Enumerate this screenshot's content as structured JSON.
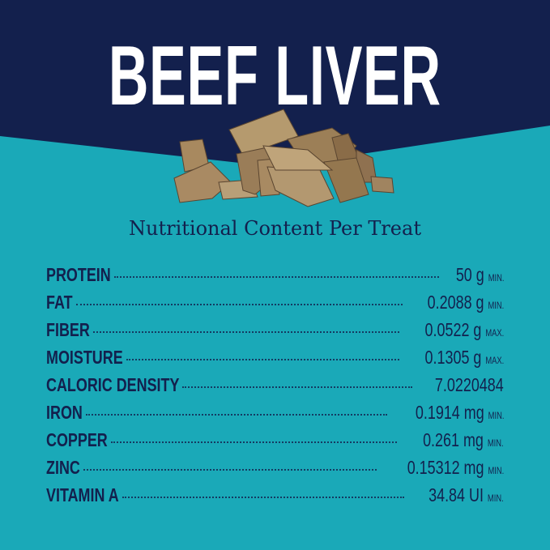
{
  "title": "BEEF LIVER",
  "subtitle": "Nutritional Content Per Treat",
  "colors": {
    "navy": "#13204d",
    "teal": "#1aa9b8",
    "title": "#ffffff"
  },
  "image": "freeze-dried-beef-liver-chunks",
  "nutrients": [
    {
      "label": "PROTEIN",
      "value": "50 g",
      "qualifier": "MIN."
    },
    {
      "label": "FAT",
      "value": "0.2088 g",
      "qualifier": "MIN."
    },
    {
      "label": "FIBER",
      "value": "0.0522 g",
      "qualifier": "MAX."
    },
    {
      "label": "MOISTURE",
      "value": "0.1305 g",
      "qualifier": "MAX."
    },
    {
      "label": "CALORIC DENSITY",
      "value": "7.0220484",
      "qualifier": ""
    },
    {
      "label": "IRON",
      "value": "0.1914 mg",
      "qualifier": "MIN."
    },
    {
      "label": "COPPER",
      "value": "0.261 mg",
      "qualifier": "MIN."
    },
    {
      "label": "ZINC",
      "value": "0.15312 mg",
      "qualifier": "MIN."
    },
    {
      "label": "VITAMIN A",
      "value": "34.84 UI",
      "qualifier": "MIN."
    }
  ]
}
